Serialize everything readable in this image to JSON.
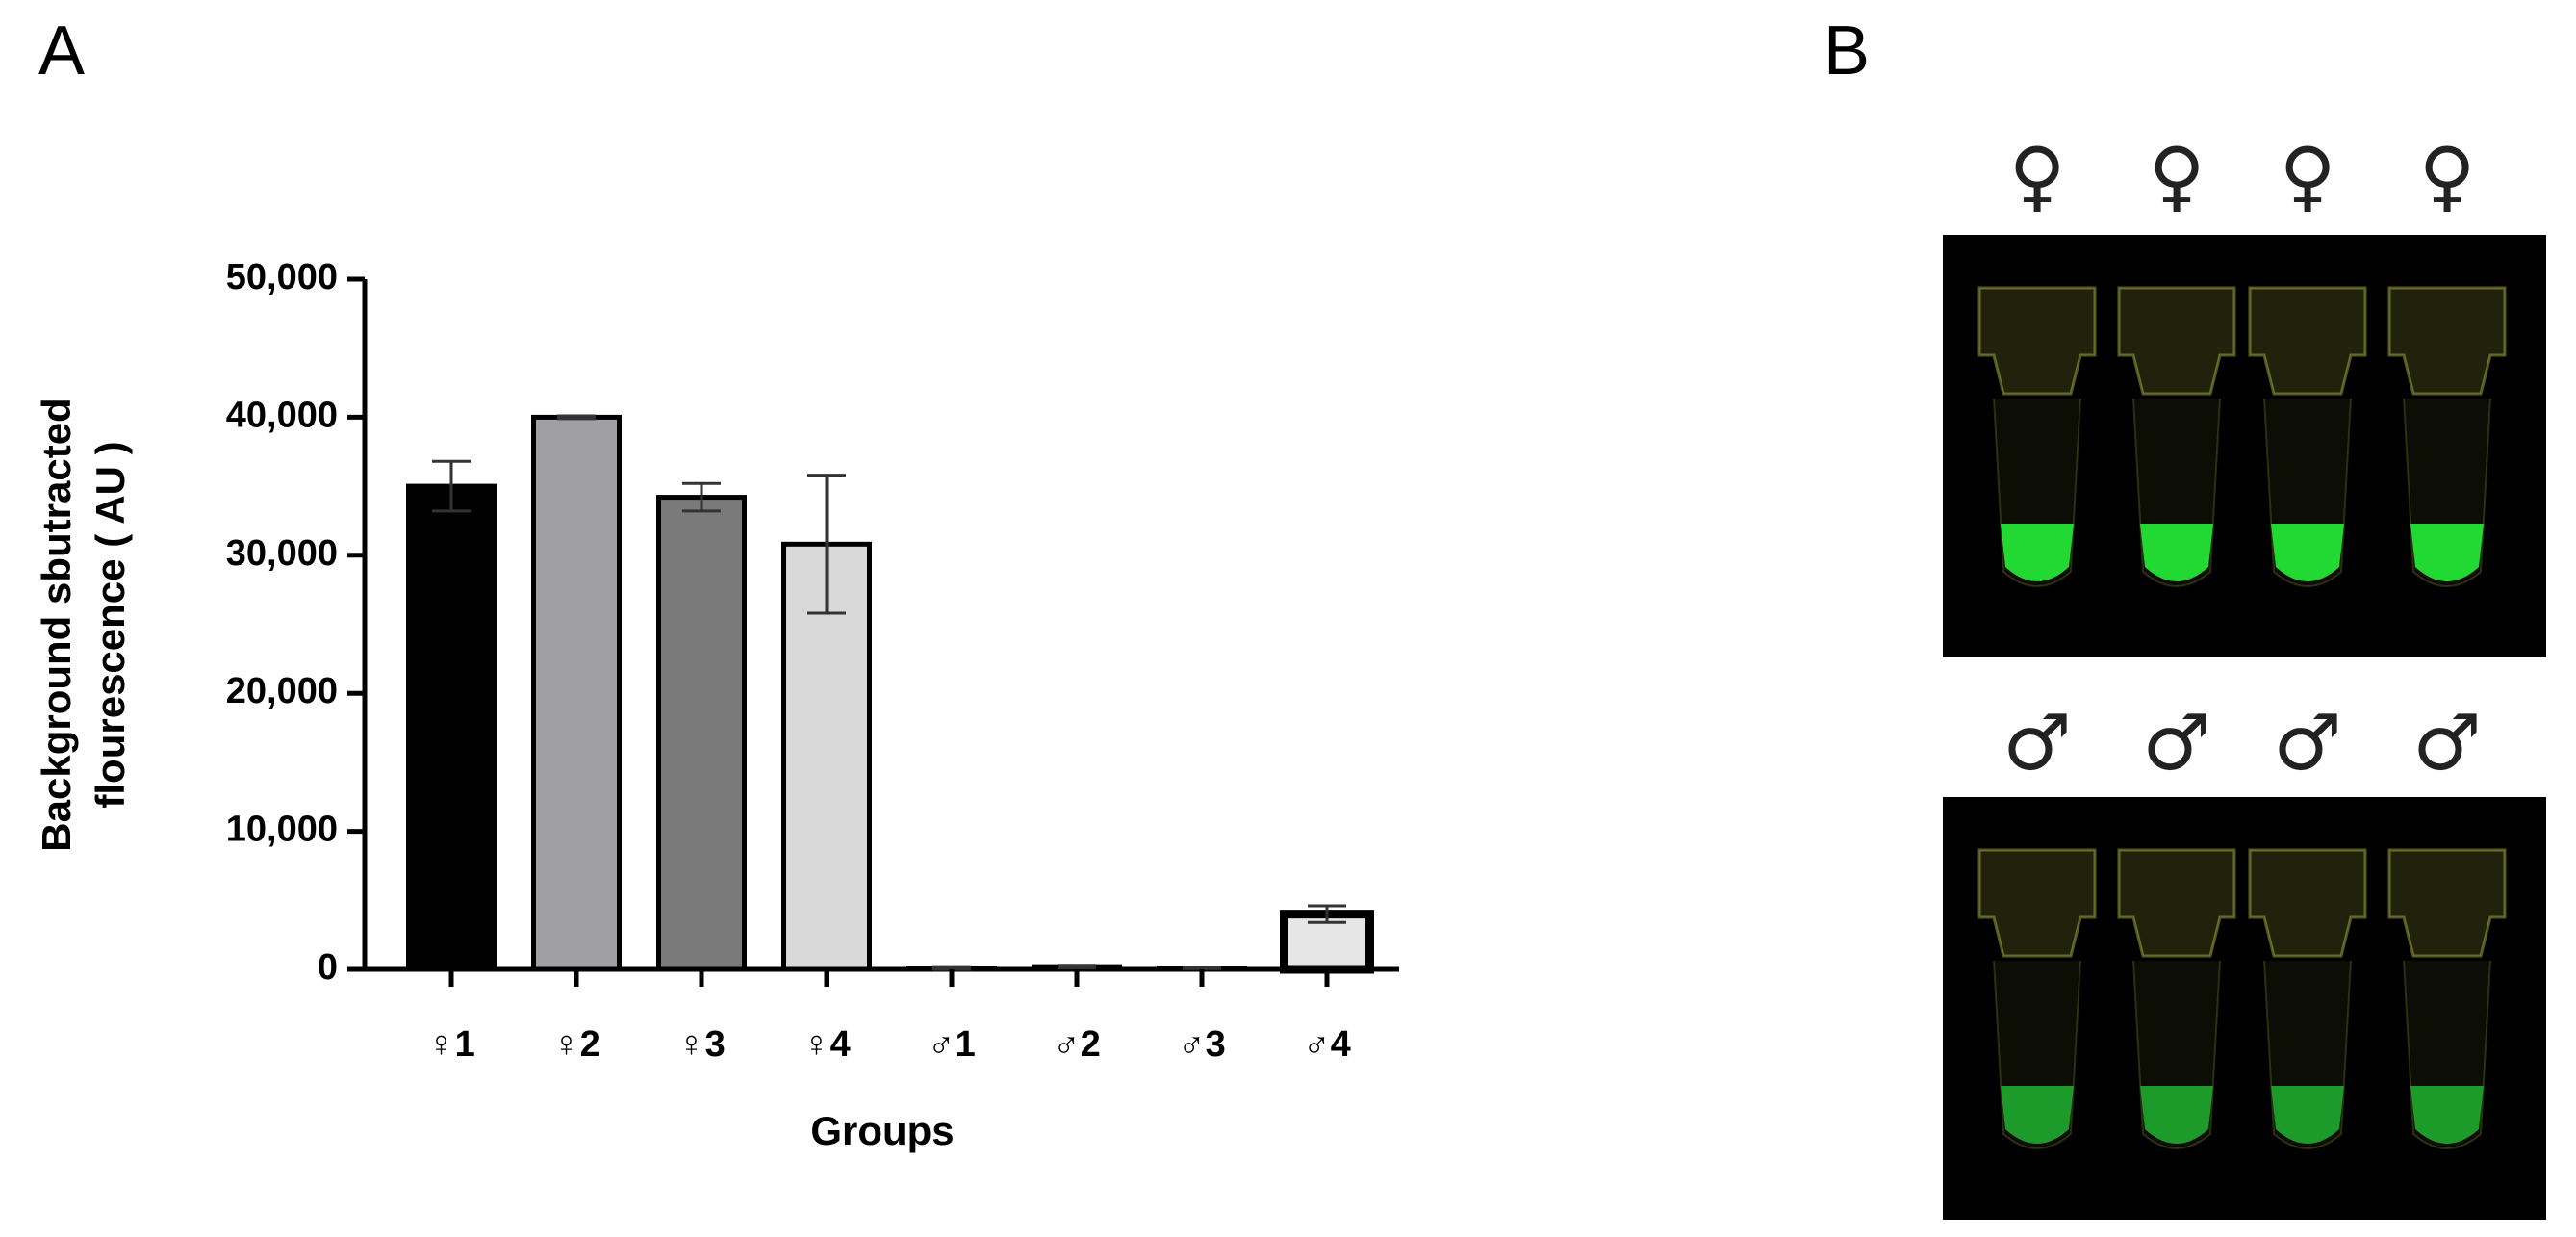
{
  "panel_labels": [
    "A",
    "B"
  ],
  "photo_symbols": {
    "top": [
      "♀",
      "♀",
      "♀",
      "♀"
    ],
    "bottom": [
      "♂",
      "♂",
      "♂",
      "♂"
    ]
  },
  "chart_data": {
    "type": "bar",
    "y_label": [
      "Background sbutracted",
      "flourescence ( AU )"
    ],
    "x_label": "Groups",
    "categories": [
      "♀1",
      "♀2",
      "♀3",
      "♀4",
      "♂1",
      "♂2",
      "♂3",
      "♂4"
    ],
    "values": [
      35000,
      40000,
      34200,
      30800,
      100,
      200,
      100,
      4000
    ],
    "errors": [
      1800,
      100,
      1000,
      5000,
      100,
      100,
      50,
      600
    ],
    "colors": [
      "#000000",
      "#a0a0a4",
      "#7a7a7a",
      "#d9d9d9",
      "#f0f0f0",
      "#f0f0f0",
      "#f0f0f0",
      "#e6e6e6"
    ],
    "ylim": [
      0,
      50000
    ],
    "yticks": [
      0,
      {
        "value": 10000,
        "label": "10,000"
      },
      {
        "value": 20000,
        "label": "20,000"
      },
      {
        "value": 30000,
        "label": "30,000"
      },
      {
        "value": 40000,
        "label": "40,000"
      },
      {
        "value": 50000,
        "label": "50,000"
      }
    ]
  }
}
